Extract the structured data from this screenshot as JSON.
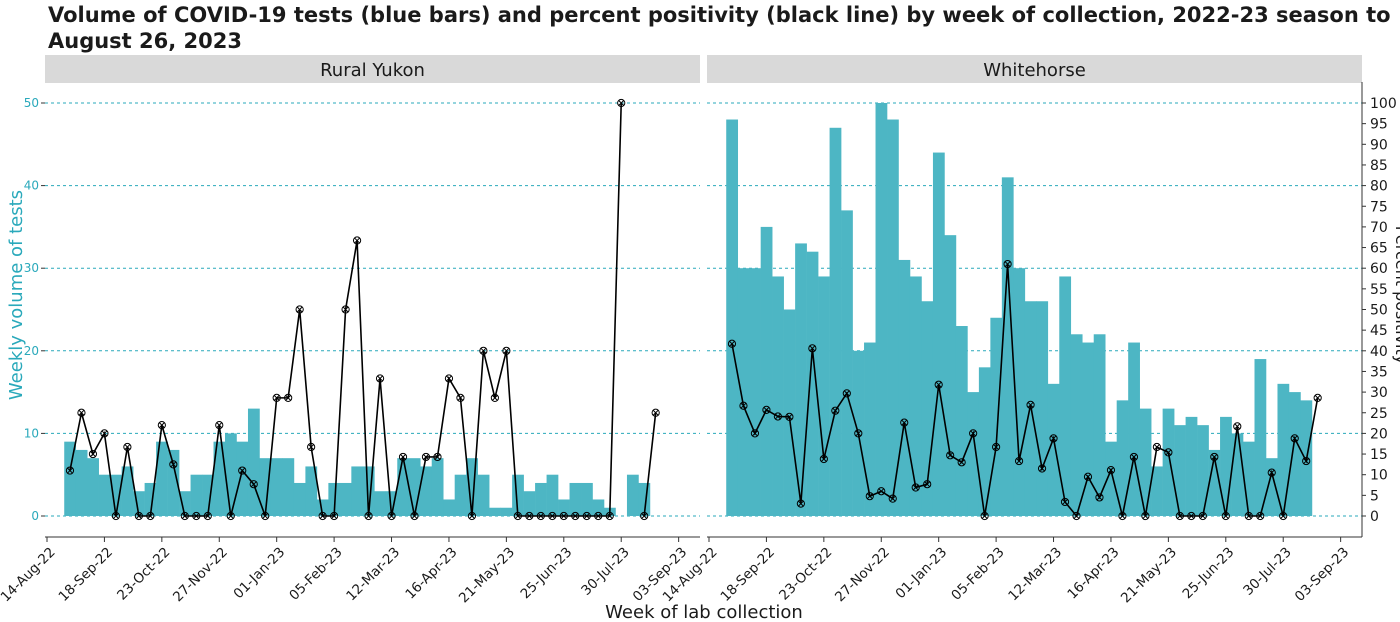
{
  "title": "Volume of COVID-19 tests (blue bars) and percent positivity (black line) by week of collection, 2022-23 season to August 26, 2023",
  "chart_data": {
    "type": "bar",
    "title": "Volume of COVID-19 tests (blue bars) and percent positivity (black line) by week of collection, 2022-23 season to August 26, 2023",
    "xlabel": "Week of lab collection",
    "ylabel": "Weekly volume of tests",
    "y2label": "Percent positivity",
    "ylim": [
      0,
      52
    ],
    "y2lim": [
      0,
      104
    ],
    "yticks": [
      0,
      10,
      20,
      30,
      40,
      50
    ],
    "y2ticks": [
      0,
      5,
      10,
      15,
      20,
      25,
      30,
      35,
      40,
      45,
      50,
      55,
      60,
      65,
      70,
      75,
      80,
      85,
      90,
      95,
      100
    ],
    "xticks": [
      "14-Aug-22",
      "18-Sep-22",
      "23-Oct-22",
      "27-Nov-22",
      "01-Jan-23",
      "05-Feb-23",
      "12-Mar-23",
      "16-Apr-23",
      "21-May-23",
      "25-Jun-23",
      "30-Jul-23",
      "03-Sep-23"
    ],
    "x": [
      "2022-08-28",
      "2022-09-04",
      "2022-09-11",
      "2022-09-18",
      "2022-09-25",
      "2022-10-02",
      "2022-10-09",
      "2022-10-16",
      "2022-10-23",
      "2022-10-30",
      "2022-11-06",
      "2022-11-13",
      "2022-11-20",
      "2022-11-27",
      "2022-12-04",
      "2022-12-11",
      "2022-12-18",
      "2022-12-25",
      "2023-01-01",
      "2023-01-08",
      "2023-01-15",
      "2023-01-22",
      "2023-01-29",
      "2023-02-05",
      "2023-02-12",
      "2023-02-19",
      "2023-02-26",
      "2023-03-05",
      "2023-03-12",
      "2023-03-19",
      "2023-03-26",
      "2023-04-02",
      "2023-04-09",
      "2023-04-16",
      "2023-04-23",
      "2023-04-30",
      "2023-05-07",
      "2023-05-14",
      "2023-05-21",
      "2023-05-28",
      "2023-06-04",
      "2023-06-11",
      "2023-06-18",
      "2023-06-25",
      "2023-07-02",
      "2023-07-09",
      "2023-07-16",
      "2023-07-23",
      "2023-07-30",
      "2023-08-06",
      "2023-08-13",
      "2023-08-20"
    ],
    "panels": [
      {
        "name": "Rural Yukon",
        "tests": [
          9,
          8,
          7,
          5,
          5,
          6,
          3,
          4,
          9,
          8,
          3,
          5,
          5,
          9,
          10,
          9,
          13,
          7,
          7,
          7,
          4,
          6,
          2,
          4,
          4,
          6,
          6,
          3,
          3,
          7,
          7,
          6,
          7,
          2,
          5,
          7,
          5,
          1,
          1,
          5,
          3,
          4,
          5,
          2,
          4,
          4,
          2,
          1,
          0,
          5,
          4,
          0
        ],
        "positivity": [
          11,
          25,
          15,
          20,
          0,
          16.7,
          0,
          0,
          22,
          12.5,
          0,
          0,
          0,
          22,
          0,
          11,
          7.7,
          0,
          28.6,
          28.6,
          50,
          16.7,
          0,
          0,
          50,
          66.7,
          0,
          33.3,
          0,
          14.3,
          0,
          14.3,
          14.3,
          33.3,
          28.6,
          0,
          40,
          28.6,
          40,
          0,
          0,
          0,
          0,
          0,
          0,
          0,
          0,
          0,
          100,
          null,
          0,
          25
        ]
      },
      {
        "name": "Whitehorse",
        "tests": [
          48,
          30,
          30,
          35,
          29,
          25,
          33,
          32,
          29,
          47,
          37,
          20,
          21,
          50,
          48,
          31,
          29,
          26,
          44,
          34,
          23,
          15,
          18,
          24,
          41,
          30,
          26,
          26,
          16,
          29,
          22,
          21,
          22,
          9,
          14,
          21,
          13,
          6,
          13,
          11,
          12,
          11,
          8,
          12,
          10,
          9,
          19,
          7,
          16,
          15,
          14,
          0
        ],
        "positivity": [
          41.7,
          26.7,
          20,
          25.7,
          24.1,
          24,
          3,
          40.6,
          13.8,
          25.5,
          29.7,
          20,
          4.8,
          6,
          4.2,
          22.6,
          6.9,
          7.7,
          31.8,
          14.7,
          13,
          20,
          0,
          16.7,
          61,
          13.3,
          26.9,
          11.5,
          18.8,
          3.4,
          0,
          9.5,
          4.5,
          11.1,
          0,
          14.3,
          0,
          16.7,
          15.4,
          0,
          0,
          0,
          14.3,
          0,
          21.7,
          0,
          0,
          10.5,
          0,
          18.8,
          13.3,
          28.6
        ]
      }
    ],
    "colors": {
      "bars": "#4db6c4",
      "line": "#000000",
      "grid": "#2aa9bb",
      "strip": "#d9d9d9",
      "left_axis_text": "#2aa9bb"
    },
    "grid": true,
    "legend": "none"
  }
}
